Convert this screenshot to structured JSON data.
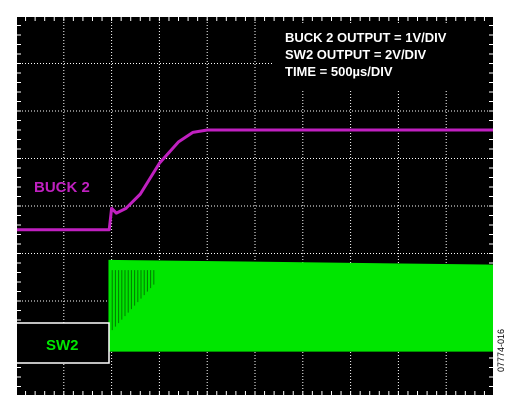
{
  "chart_data": {
    "type": "line",
    "title": "",
    "xlabel": "",
    "ylabel": "",
    "grid": true,
    "xlim_div": [
      0,
      10
    ],
    "ylim_div": [
      -4,
      4
    ],
    "annotations": [
      "BUCK 2 OUTPUT = 1V/DIV",
      "SW2 OUTPUT = 2V/DIV",
      "TIME = 500µs/DIV"
    ],
    "series": [
      {
        "name": "BUCK 2",
        "color": "#c020c0",
        "x_div": [
          0,
          1.95,
          2.0,
          2.1,
          2.3,
          2.6,
          3.0,
          3.4,
          3.7,
          4.0,
          4.2,
          10
        ],
        "y_div": [
          -0.5,
          -0.5,
          -0.05,
          -0.15,
          -0.05,
          0.25,
          0.9,
          1.35,
          1.55,
          1.6,
          1.6,
          1.6
        ]
      },
      {
        "name": "SW2",
        "color": "#00e600",
        "x_div": [
          0,
          1.95,
          1.95,
          10
        ],
        "y_low_div": [
          -3.02,
          -3.02,
          -3.05,
          -3.05
        ],
        "y_high_div": [
          -3.02,
          -3.02,
          -1.15,
          -1.25
        ]
      }
    ],
    "figure_id": "07774-016"
  }
}
